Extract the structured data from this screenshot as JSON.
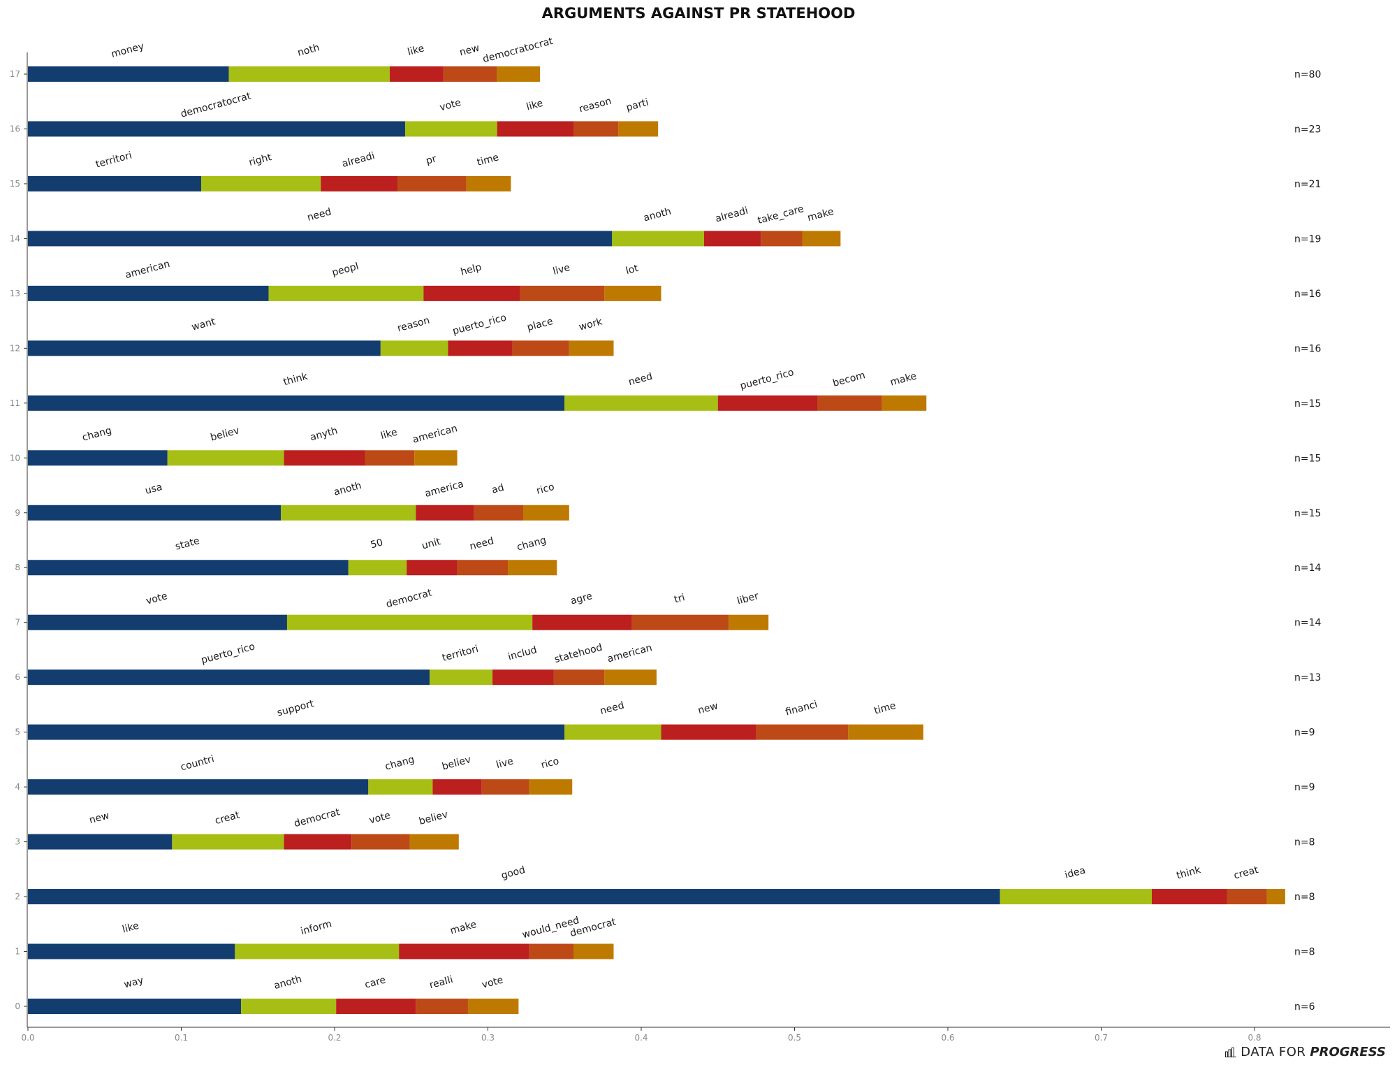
{
  "brand": {
    "first": "DATA FOR",
    "second": "PROGRESS"
  },
  "chart_data": {
    "type": "bar",
    "stacked": true,
    "orientation": "horizontal",
    "title": "ARGUMENTS AGAINST PR STATEHOOD",
    "xlim": [
      0,
      0.89
    ],
    "xticks": [
      "0.0",
      "0.1",
      "0.2",
      "0.3",
      "0.4",
      "0.5",
      "0.6",
      "0.7",
      "0.8"
    ],
    "segment_colors": [
      "#133d6e",
      "#a7bf14",
      "#bb1f1e",
      "#bd4917",
      "#be7a00"
    ],
    "rows": [
      {
        "y": "17",
        "n": "n=80",
        "words": [
          "money",
          "noth",
          "like",
          "new",
          "democratocrat"
        ],
        "values": [
          0.131,
          0.105,
          0.035,
          0.035,
          0.028
        ]
      },
      {
        "y": "16",
        "n": "n=23",
        "words": [
          "democratocrat",
          "vote",
          "like",
          "reason",
          "parti"
        ],
        "values": [
          0.246,
          0.06,
          0.05,
          0.029,
          0.026
        ]
      },
      {
        "y": "15",
        "n": "n=21",
        "words": [
          "territori",
          "right",
          "alreadi",
          "pr",
          "time"
        ],
        "values": [
          0.113,
          0.078,
          0.05,
          0.045,
          0.029
        ]
      },
      {
        "y": "14",
        "n": "n=19",
        "words": [
          "need",
          "anoth",
          "alreadi",
          "take_care",
          "make"
        ],
        "values": [
          0.381,
          0.06,
          0.037,
          0.027,
          0.025
        ]
      },
      {
        "y": "13",
        "n": "n=16",
        "words": [
          "american",
          "peopl",
          "help",
          "live",
          "lot"
        ],
        "values": [
          0.157,
          0.101,
          0.063,
          0.055,
          0.037
        ]
      },
      {
        "y": "12",
        "n": "n=16",
        "words": [
          "want",
          "reason",
          "puerto_rico",
          "place",
          "work"
        ],
        "values": [
          0.23,
          0.044,
          0.042,
          0.037,
          0.029
        ]
      },
      {
        "y": "11",
        "n": "n=15",
        "words": [
          "think",
          "need",
          "puerto_rico",
          "becom",
          "make"
        ],
        "values": [
          0.35,
          0.1,
          0.065,
          0.042,
          0.029
        ]
      },
      {
        "y": "10",
        "n": "n=15",
        "words": [
          "chang",
          "believ",
          "anyth",
          "like",
          "american"
        ],
        "values": [
          0.091,
          0.076,
          0.053,
          0.032,
          0.028
        ]
      },
      {
        "y": "9",
        "n": "n=15",
        "words": [
          "usa",
          "anoth",
          "america",
          "ad",
          "rico"
        ],
        "values": [
          0.165,
          0.088,
          0.038,
          0.032,
          0.03
        ]
      },
      {
        "y": "8",
        "n": "n=14",
        "words": [
          "state",
          "50",
          "unit",
          "need",
          "chang"
        ],
        "values": [
          0.209,
          0.038,
          0.033,
          0.033,
          0.032
        ]
      },
      {
        "y": "7",
        "n": "n=14",
        "words": [
          "vote",
          "democrat",
          "agre",
          "tri",
          "liber"
        ],
        "values": [
          0.169,
          0.16,
          0.065,
          0.063,
          0.026
        ]
      },
      {
        "y": "6",
        "n": "n=13",
        "words": [
          "puerto_rico",
          "territori",
          "includ",
          "statehood",
          "american"
        ],
        "values": [
          0.262,
          0.041,
          0.04,
          0.033,
          0.034
        ]
      },
      {
        "y": "5",
        "n": "n=9",
        "words": [
          "support",
          "need",
          "new",
          "financi",
          "time"
        ],
        "values": [
          0.35,
          0.063,
          0.062,
          0.06,
          0.049
        ]
      },
      {
        "y": "4",
        "n": "n=9",
        "words": [
          "countri",
          "chang",
          "believ",
          "live",
          "rico"
        ],
        "values": [
          0.222,
          0.042,
          0.032,
          0.031,
          0.028
        ]
      },
      {
        "y": "3",
        "n": "n=8",
        "words": [
          "new",
          "creat",
          "democrat",
          "vote",
          "believ"
        ],
        "values": [
          0.094,
          0.073,
          0.044,
          0.038,
          0.032
        ]
      },
      {
        "y": "2",
        "n": "n=8",
        "words": [
          "good",
          "idea",
          "think",
          "creat",
          ""
        ],
        "values": [
          0.634,
          0.099,
          0.049,
          0.026,
          0.012
        ]
      },
      {
        "y": "1",
        "n": "n=8",
        "words": [
          "like",
          "inform",
          "make",
          "would_need",
          "democrat"
        ],
        "values": [
          0.135,
          0.107,
          0.085,
          0.029,
          0.026
        ]
      },
      {
        "y": "0",
        "n": "n=6",
        "words": [
          "way",
          "anoth",
          "care",
          "realli",
          "vote"
        ],
        "values": [
          0.139,
          0.062,
          0.052,
          0.034,
          0.033
        ]
      }
    ]
  }
}
